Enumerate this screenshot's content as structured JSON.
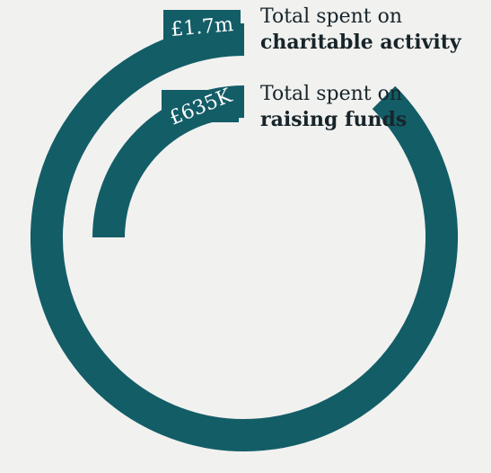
{
  "chart_data": {
    "type": "radial-bar",
    "series": [
      {
        "label_line1": "Total spent on",
        "label_line2": "charitable activity",
        "value_label": "£1.7m",
        "value_millions": 1.7
      },
      {
        "label_line1": "Total spent on",
        "label_line2": "raising funds",
        "value_label": "£635K",
        "value_millions": 0.635
      }
    ],
    "colors": {
      "bar": "#135d67",
      "label_text": "#ffffff",
      "legend_text": "#17252a",
      "background": "#f1f1ef"
    }
  }
}
